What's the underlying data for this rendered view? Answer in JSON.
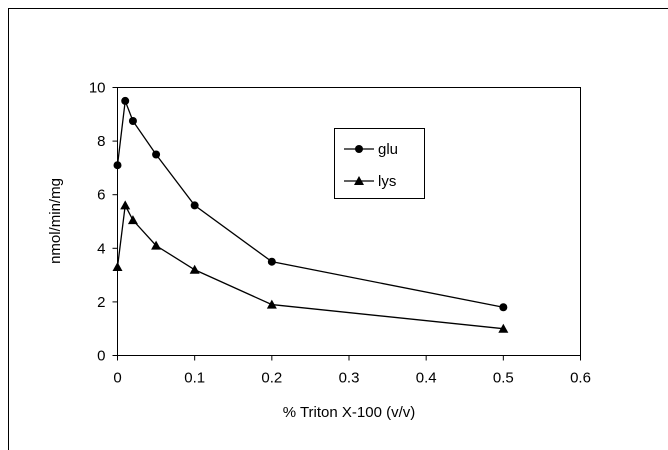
{
  "chart_data": {
    "type": "line",
    "title": "",
    "xlabel": "% Triton X-100 (v/v)",
    "ylabel": "nmol/min/mg",
    "xlim": [
      0,
      0.6
    ],
    "ylim": [
      0,
      10
    ],
    "x_ticks": [
      0,
      0.1,
      0.2,
      0.3,
      0.4,
      0.5,
      0.6
    ],
    "x_tick_labels": [
      "0",
      "0.1",
      "0.2",
      "0.3",
      "0.4",
      "0.5",
      "0.6"
    ],
    "y_ticks": [
      0,
      2,
      4,
      6,
      8,
      10
    ],
    "y_tick_labels": [
      "0",
      "2",
      "4",
      "6",
      "8",
      "10"
    ],
    "grid": false,
    "legend_position": "top-center-right",
    "series": [
      {
        "name": "glu",
        "marker": "circle",
        "color": "#000000",
        "x": [
          0,
          0.01,
          0.02,
          0.05,
          0.1,
          0.2,
          0.5
        ],
        "y": [
          7.1,
          9.5,
          8.75,
          7.5,
          5.6,
          3.5,
          1.8
        ]
      },
      {
        "name": "lys",
        "marker": "triangle",
        "color": "#000000",
        "x": [
          0,
          0.01,
          0.02,
          0.05,
          0.1,
          0.2,
          0.5
        ],
        "y": [
          3.3,
          5.6,
          5.05,
          4.1,
          3.2,
          1.9,
          1.0
        ]
      }
    ]
  }
}
